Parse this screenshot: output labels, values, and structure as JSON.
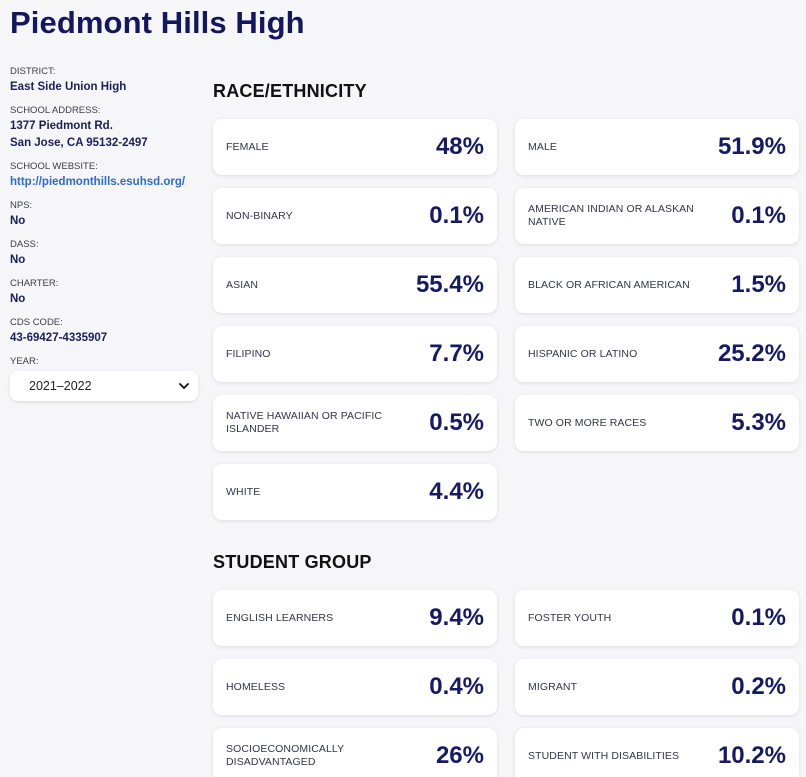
{
  "school": {
    "name": "Piedmont Hills High"
  },
  "sidebar": {
    "district_label": "DISTRICT:",
    "district_value": "East Side Union High",
    "address_label": "SCHOOL ADDRESS:",
    "address_line1": "1377 Piedmont Rd.",
    "address_line2": "San Jose, CA 95132-2497",
    "website_label": "SCHOOL WEBSITE:",
    "website_value": "http://piedmonthills.esuhsd.org/",
    "nps_label": "NPS:",
    "nps_value": "No",
    "dass_label": "DASS:",
    "dass_value": "No",
    "charter_label": "CHARTER:",
    "charter_value": "No",
    "cds_label": "CDS CODE:",
    "cds_value": "43-69427-4335907",
    "year_label": "YEAR:",
    "year_value": "2021–2022"
  },
  "race": {
    "title": "RACE/ETHNICITY",
    "items": [
      {
        "label": "FEMALE",
        "value": "48%"
      },
      {
        "label": "MALE",
        "value": "51.9%"
      },
      {
        "label": "NON-BINARY",
        "value": "0.1%"
      },
      {
        "label": "AMERICAN INDIAN OR ALASKAN NATIVE",
        "value": "0.1%"
      },
      {
        "label": "ASIAN",
        "value": "55.4%"
      },
      {
        "label": "BLACK OR AFRICAN AMERICAN",
        "value": "1.5%"
      },
      {
        "label": "FILIPINO",
        "value": "7.7%"
      },
      {
        "label": "HISPANIC OR LATINO",
        "value": "25.2%"
      },
      {
        "label": "NATIVE HAWAIIAN OR PACIFIC ISLANDER",
        "value": "0.5%"
      },
      {
        "label": "TWO OR MORE RACES",
        "value": "5.3%"
      },
      {
        "label": "WHITE",
        "value": "4.4%"
      }
    ]
  },
  "group": {
    "title": "STUDENT GROUP",
    "items": [
      {
        "label": "ENGLISH LEARNERS",
        "value": "9.4%"
      },
      {
        "label": "FOSTER YOUTH",
        "value": "0.1%"
      },
      {
        "label": "HOMELESS",
        "value": "0.4%"
      },
      {
        "label": "MIGRANT",
        "value": "0.2%"
      },
      {
        "label": "SOCIOECONOMICALLY DISADVANTAGED",
        "value": "26%"
      },
      {
        "label": "STUDENT WITH DISABILITIES",
        "value": "10.2%"
      }
    ]
  },
  "icons": {
    "year_dropdown": "chevron-down-icon"
  },
  "colors": {
    "title": "#121760",
    "link": "#2c6bd1",
    "background": "#f6f6f8",
    "card": "#ffffff"
  }
}
